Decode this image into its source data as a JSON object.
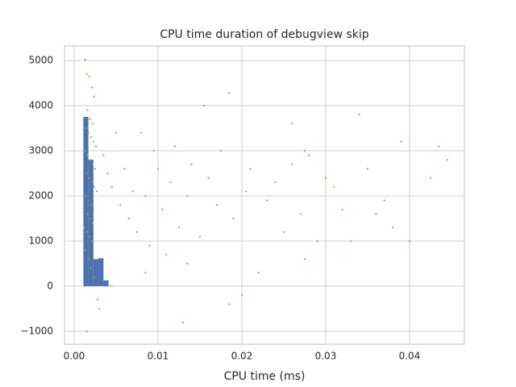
{
  "chart_data": {
    "type": "hist-scatter",
    "title": "CPU time duration of debugview skip",
    "x_label": "CPU time (ms)",
    "xlim": [
      -0.00115,
      0.04654
    ],
    "ylim": [
      -1286,
      5321
    ],
    "xticks": [
      {
        "value": 0,
        "label": "0.00"
      },
      {
        "value": 0.01,
        "label": "0.01"
      },
      {
        "value": 0.02,
        "label": "0.02"
      },
      {
        "value": 0.03,
        "label": "0.03"
      },
      {
        "value": 0.04,
        "label": "0.04"
      }
    ],
    "yticks": [
      {
        "value": -1000,
        "label": "−1000"
      },
      0,
      1000,
      2000,
      3000,
      4000,
      5000
    ],
    "grid": true,
    "histogram": {
      "color": "#4c72b0",
      "bins": [
        0.0011,
        0.0017,
        0.0023,
        0.0029,
        0.0035,
        0.0041,
        0.0047
      ],
      "counts": [
        3750,
        2800,
        600,
        620,
        130,
        10
      ]
    },
    "scatter": {
      "color": "#dd8452",
      "x": [
        0.0013,
        0.0015,
        0.0018,
        0.0021,
        0.0024,
        0.0016,
        0.0019,
        0.0022,
        0.0014,
        0.0017,
        0.002,
        0.0023,
        0.0026,
        0.0013,
        0.0016,
        0.0019,
        0.0022,
        0.0025,
        0.0015,
        0.0018,
        0.0021,
        0.0024,
        0.0027,
        0.0014,
        0.0017,
        0.002,
        0.0023,
        0.0016,
        0.0019,
        0.0022,
        0.0012,
        0.0015,
        0.0018,
        0.0021,
        0.0013,
        0.0017,
        0.002,
        0.0024,
        0.0028,
        0.003,
        0.0015,
        0.0035,
        0.004,
        0.0045,
        0.005,
        0.0055,
        0.006,
        0.0065,
        0.007,
        0.0075,
        0.008,
        0.0085,
        0.009,
        0.0095,
        0.01,
        0.0105,
        0.011,
        0.0115,
        0.012,
        0.0125,
        0.013,
        0.0135,
        0.014,
        0.015,
        0.0155,
        0.016,
        0.017,
        0.0175,
        0.0185,
        0.019,
        0.02,
        0.0205,
        0.021,
        0.022,
        0.023,
        0.024,
        0.025,
        0.026,
        0.027,
        0.0275,
        0.028,
        0.029,
        0.03,
        0.031,
        0.032,
        0.033,
        0.034,
        0.035,
        0.036,
        0.037,
        0.038,
        0.039,
        0.04,
        0.0425,
        0.0435,
        0.0445,
        0.0185,
        0.0275,
        0.0085,
        0.0135,
        0.026
      ],
      "y": [
        5020,
        4700,
        4650,
        4400,
        4200,
        3900,
        3700,
        3600,
        3500,
        3400,
        3300,
        3200,
        3100,
        3000,
        2900,
        2800,
        2700,
        2600,
        2500,
        2400,
        2300,
        2200,
        2100,
        2000,
        1900,
        1800,
        1700,
        1600,
        1500,
        1400,
        1300,
        1200,
        1100,
        1000,
        800,
        600,
        400,
        200,
        -300,
        -500,
        -1000,
        2900,
        2500,
        2200,
        3400,
        1800,
        2600,
        1500,
        2100,
        1200,
        3400,
        2000,
        900,
        3000,
        2600,
        1700,
        700,
        2300,
        3100,
        1300,
        -800,
        2000,
        2700,
        1100,
        4000,
        2400,
        1800,
        3000,
        4280,
        1500,
        -200,
        2100,
        2600,
        300,
        1900,
        2300,
        1200,
        2700,
        1600,
        3000,
        2900,
        1000,
        2400,
        2200,
        1700,
        1000,
        3800,
        2600,
        1600,
        1900,
        1300,
        3200,
        1000,
        2400,
        3100,
        2800,
        -400,
        600,
        300,
        500,
        3600
      ]
    }
  }
}
